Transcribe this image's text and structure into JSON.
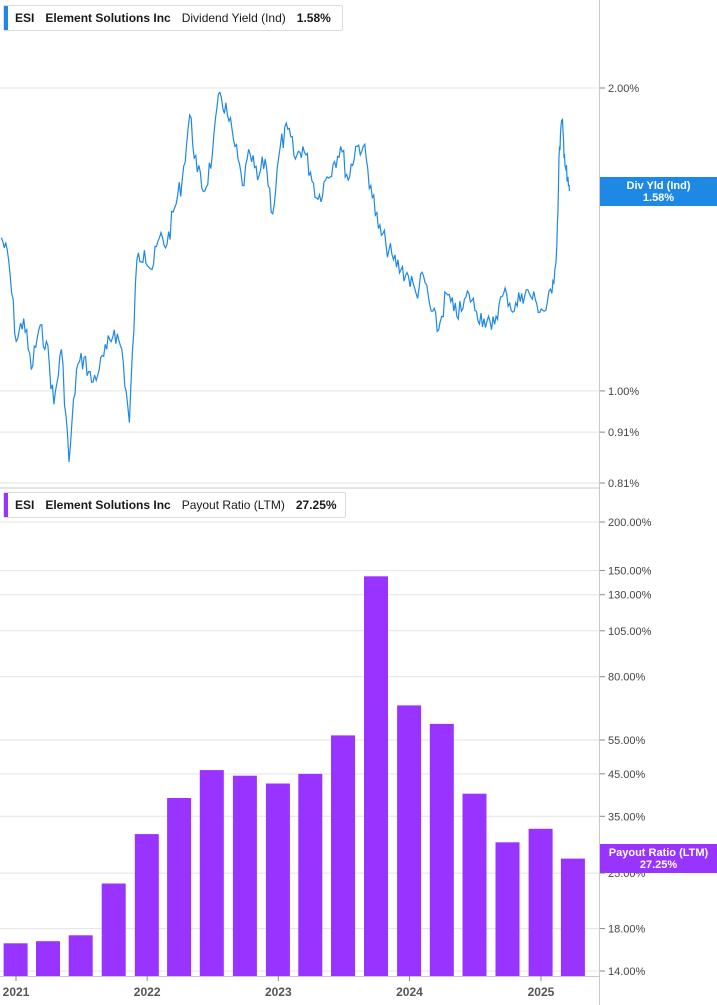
{
  "colors": {
    "yield_line": "#1e88e5",
    "payout_bar": "#9933ff",
    "grid": "#e3e3e3",
    "axis_text": "#444444"
  },
  "chart_data": [
    {
      "type": "line",
      "legend": {
        "ticker": "ESI",
        "company": "Element Solutions Inc",
        "metric": "Dividend Yield (Ind)",
        "value": "1.58%"
      },
      "flag": {
        "label": "Div Yld (Ind)",
        "value": "1.58%"
      },
      "y_scale": "log",
      "ylim": [
        0.8,
        2.6
      ],
      "y_ticks": [
        {
          "v": 2.0,
          "label": "2.00%"
        },
        {
          "v": 1.0,
          "label": "1.00%"
        },
        {
          "v": 0.91,
          "label": "0.91%"
        },
        {
          "v": 0.81,
          "label": "0.81%"
        }
      ],
      "xlim": [
        "2021-01-01",
        "2025-07-01"
      ],
      "x": [
        "2021-01-05",
        "2021-01-25",
        "2021-02-15",
        "2021-03-08",
        "2021-03-29",
        "2021-04-19",
        "2021-05-10",
        "2021-05-31",
        "2021-06-21",
        "2021-07-12",
        "2021-08-02",
        "2021-08-23",
        "2021-09-13",
        "2021-10-04",
        "2021-10-25",
        "2021-11-15",
        "2021-12-06",
        "2021-12-27",
        "2022-01-17",
        "2022-02-07",
        "2022-02-28",
        "2022-03-21",
        "2022-04-11",
        "2022-05-02",
        "2022-05-23",
        "2022-06-13",
        "2022-07-04",
        "2022-07-25",
        "2022-08-15",
        "2022-09-05",
        "2022-09-26",
        "2022-10-17",
        "2022-11-07",
        "2022-11-28",
        "2022-12-19",
        "2023-01-09",
        "2023-01-30",
        "2023-02-20",
        "2023-03-13",
        "2023-04-03",
        "2023-04-24",
        "2023-05-15",
        "2023-06-05",
        "2023-06-26",
        "2023-07-17",
        "2023-08-07",
        "2023-08-28",
        "2023-09-18",
        "2023-10-09",
        "2023-10-30",
        "2023-11-20",
        "2023-12-11",
        "2024-01-01",
        "2024-01-22",
        "2024-02-12",
        "2024-03-04",
        "2024-03-25",
        "2024-04-15",
        "2024-05-06",
        "2024-05-27",
        "2024-06-17",
        "2024-07-08",
        "2024-07-29",
        "2024-08-19",
        "2024-09-09",
        "2024-09-30",
        "2024-10-21",
        "2024-11-11",
        "2024-12-02",
        "2024-12-23",
        "2025-01-13",
        "2025-02-03",
        "2025-02-24",
        "2025-03-17",
        "2025-03-31",
        "2025-04-07",
        "2025-04-14",
        "2025-04-21",
        "2025-04-28",
        "2025-05-05"
      ],
      "values": [
        1.42,
        1.35,
        1.12,
        1.18,
        1.05,
        1.15,
        1.12,
        0.97,
        1.1,
        0.85,
        1.05,
        1.08,
        1.02,
        1.05,
        1.1,
        1.15,
        1.1,
        0.93,
        1.35,
        1.38,
        1.32,
        1.42,
        1.4,
        1.52,
        1.62,
        1.88,
        1.65,
        1.58,
        1.72,
        1.98,
        1.88,
        1.75,
        1.6,
        1.72,
        1.62,
        1.7,
        1.5,
        1.75,
        1.82,
        1.7,
        1.75,
        1.65,
        1.55,
        1.62,
        1.68,
        1.75,
        1.62,
        1.75,
        1.75,
        1.6,
        1.45,
        1.4,
        1.35,
        1.32,
        1.3,
        1.25,
        1.3,
        1.2,
        1.15,
        1.25,
        1.2,
        1.2,
        1.25,
        1.2,
        1.18,
        1.15,
        1.22,
        1.25,
        1.2,
        1.25,
        1.25,
        1.22,
        1.2,
        1.25,
        1.4,
        1.75,
        1.85,
        1.72,
        1.62,
        1.58
      ]
    },
    {
      "type": "bar",
      "legend": {
        "ticker": "ESI",
        "company": "Element Solutions Inc",
        "metric": "Payout Ratio (LTM)",
        "value": "27.25%"
      },
      "flag": {
        "label": "Payout Ratio (LTM)",
        "value": "27.25%"
      },
      "y_scale": "log",
      "ylim": [
        14,
        200
      ],
      "y_ticks": [
        {
          "v": 200,
          "label": "200.00%"
        },
        {
          "v": 150,
          "label": "150.00%"
        },
        {
          "v": 130,
          "label": "130.00%"
        },
        {
          "v": 105,
          "label": "105.00%"
        },
        {
          "v": 80,
          "label": "80.00%"
        },
        {
          "v": 55,
          "label": "55.00%"
        },
        {
          "v": 45,
          "label": "45.00%"
        },
        {
          "v": 35,
          "label": "35.00%"
        },
        {
          "v": 25,
          "label": "25.00%"
        },
        {
          "v": 18,
          "label": "18.00%"
        },
        {
          "v": 14,
          "label": "14.00%"
        }
      ],
      "xlim": [
        "2021-01-01",
        "2025-07-01"
      ],
      "categories": [
        "2020-12-31",
        "2021-03-31",
        "2021-06-30",
        "2021-09-30",
        "2021-12-31",
        "2022-03-31",
        "2022-06-30",
        "2022-09-30",
        "2022-12-31",
        "2023-03-31",
        "2023-06-30",
        "2023-09-30",
        "2023-12-31",
        "2024-03-31",
        "2024-06-30",
        "2024-09-30",
        "2024-12-31",
        "2025-03-31"
      ],
      "values": [
        16.5,
        16.7,
        17.3,
        23.5,
        31.5,
        39.0,
        46.0,
        44.5,
        42.5,
        45.0,
        56.5,
        145.0,
        67.5,
        60.5,
        40.0,
        30.0,
        32.5,
        27.25
      ]
    }
  ],
  "x_axis": {
    "ticks": [
      "2021",
      "2022",
      "2023",
      "2024",
      "2025"
    ]
  }
}
